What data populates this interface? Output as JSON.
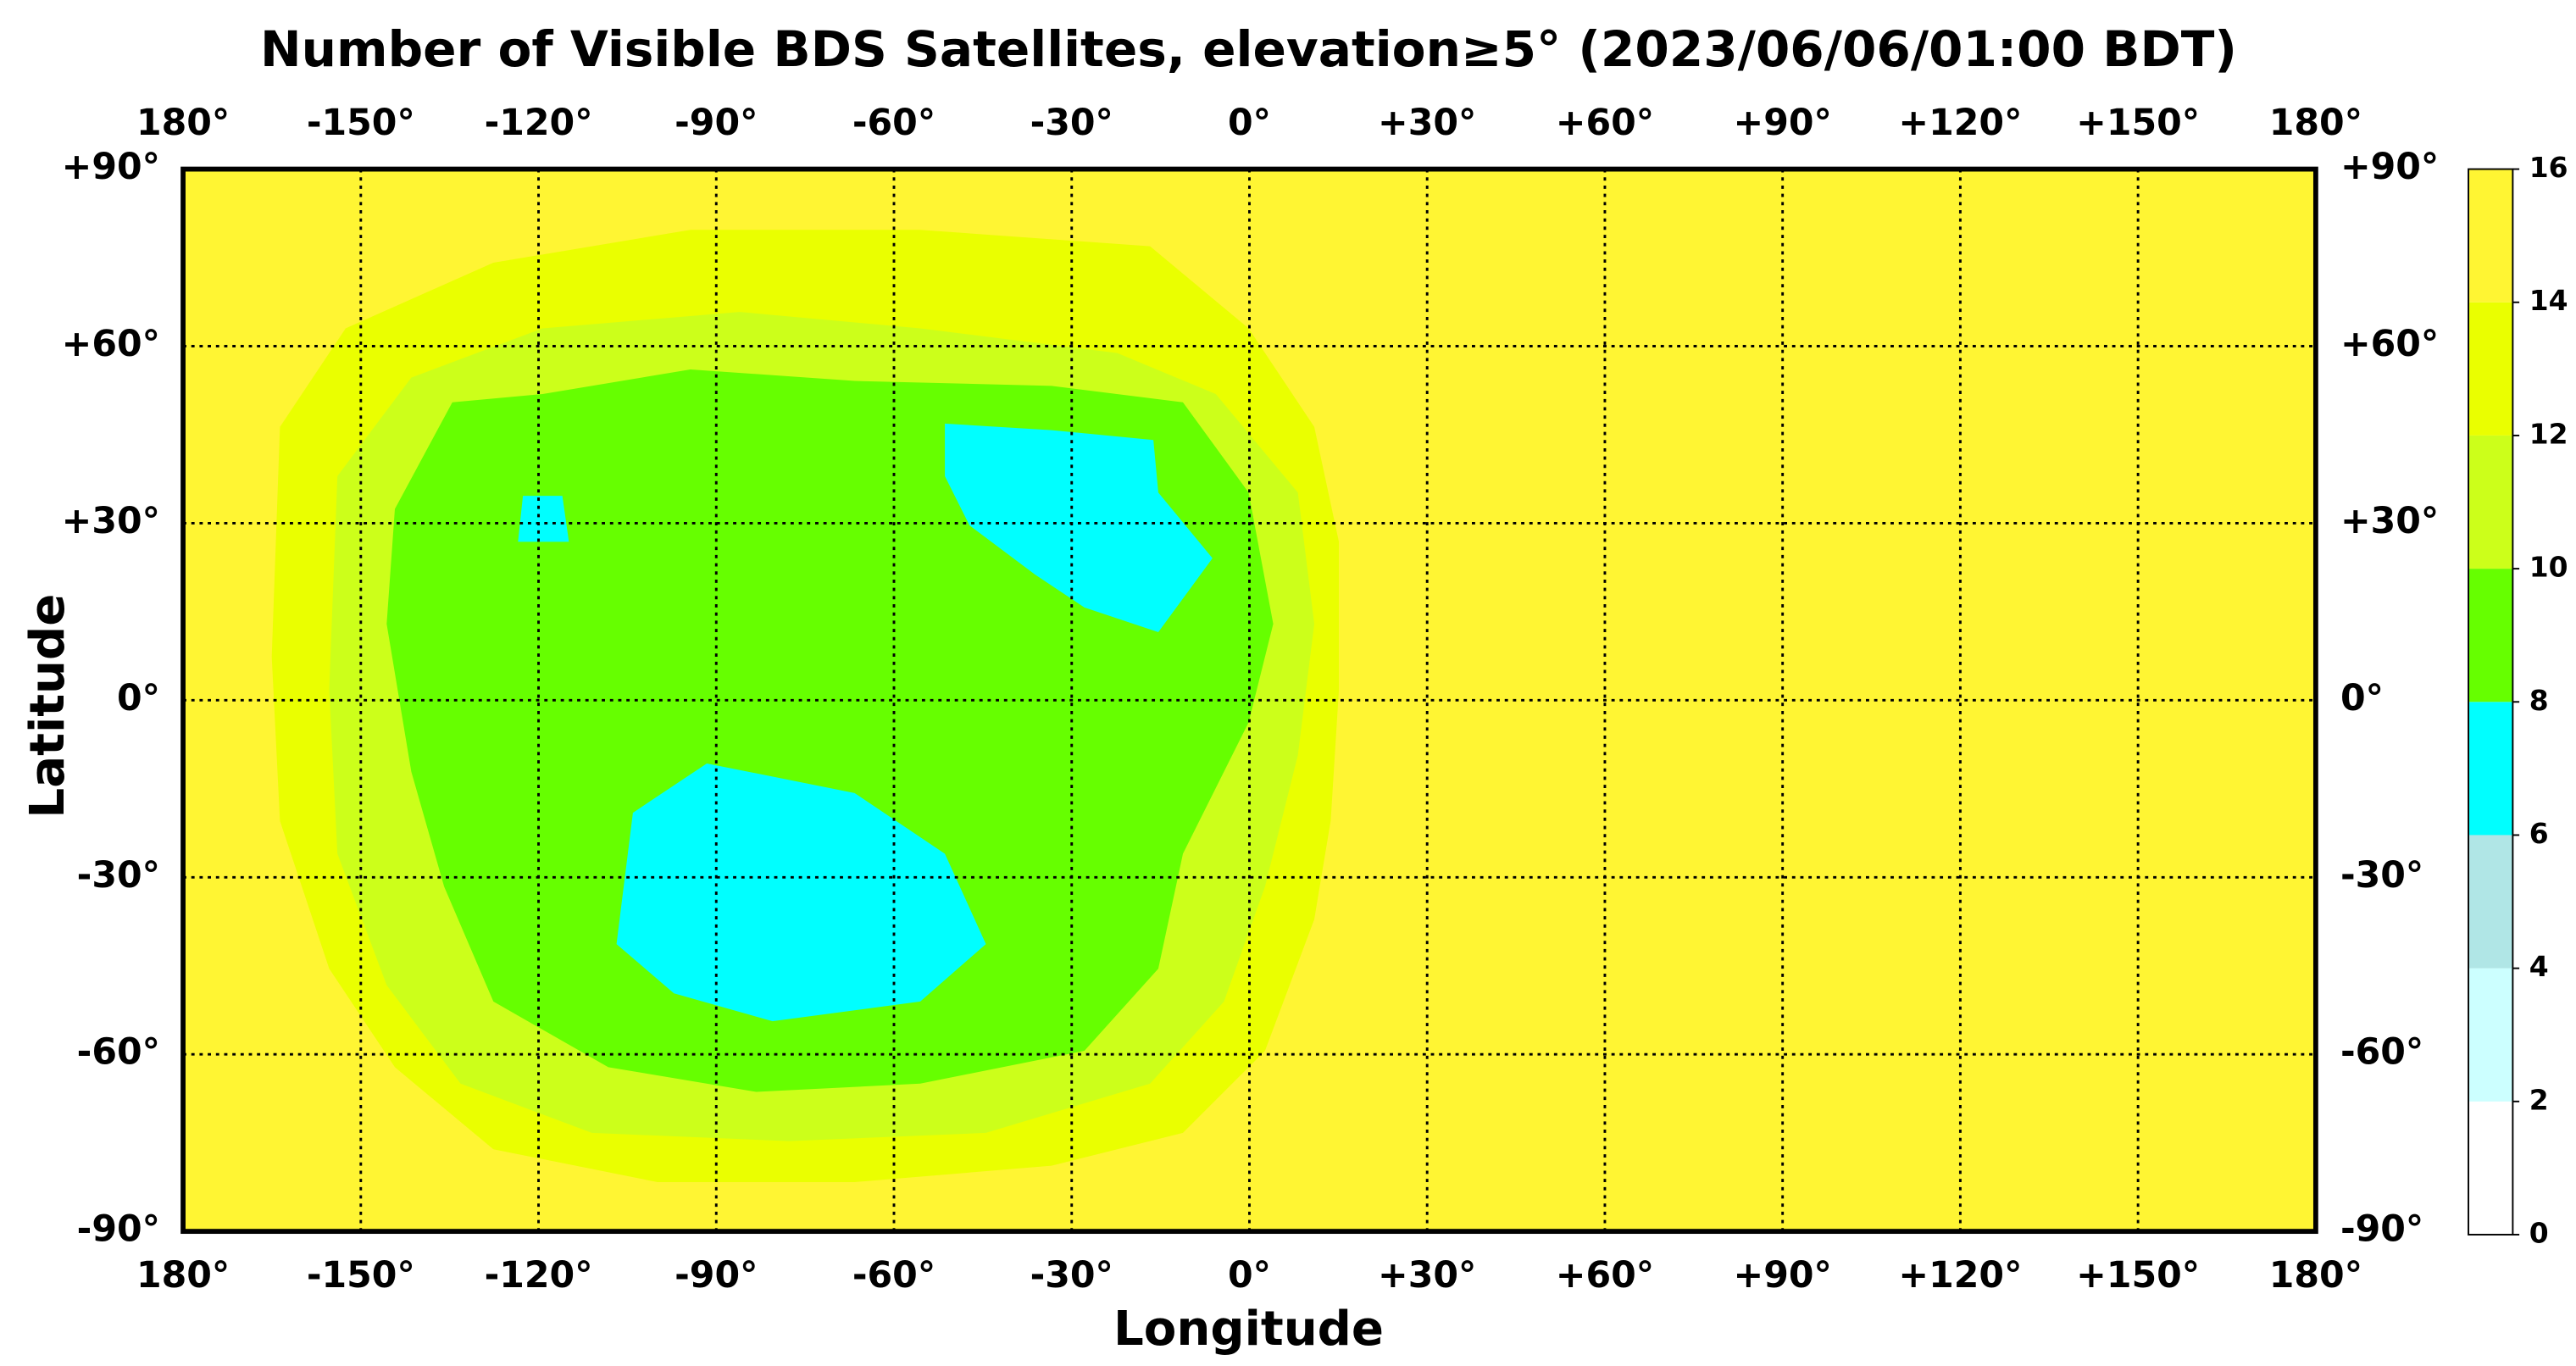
{
  "chart_data": {
    "type": "map",
    "title": "Number of Visible BDS Satellites, elevation≥5° (2023/06/06/01:00 BDT)",
    "x_label": "Longitude",
    "y_label": "Latitude",
    "xlim": [
      -180,
      180
    ],
    "xticks": [
      {
        "value": -180,
        "label": "180°"
      },
      {
        "value": -150,
        "label": "-150°"
      },
      {
        "value": -120,
        "label": "-120°"
      },
      {
        "value": -90,
        "label": "-90°"
      },
      {
        "value": -60,
        "label": "-60°"
      },
      {
        "value": -30,
        "label": "-30°"
      },
      {
        "value": 0,
        "label": "0°"
      },
      {
        "value": 30,
        "label": "+30°"
      },
      {
        "value": 60,
        "label": "+60°"
      },
      {
        "value": 90,
        "label": "+90°"
      },
      {
        "value": 120,
        "label": "+120°"
      },
      {
        "value": 150,
        "label": "+150°"
      },
      {
        "value": 180,
        "label": "180°"
      }
    ],
    "ylim": [
      -90,
      90
    ],
    "yticks": [
      {
        "value": -90,
        "label": "-90°"
      },
      {
        "value": -60,
        "label": "-60°"
      },
      {
        "value": -30,
        "label": "-30°"
      },
      {
        "value": 0,
        "label": "0°"
      },
      {
        "value": 30,
        "label": "+30°"
      },
      {
        "value": 60,
        "label": "+60°"
      },
      {
        "value": 90,
        "label": "+90°"
      }
    ],
    "grid": true,
    "colorbar": {
      "lim": [
        0,
        16
      ],
      "ticks": [
        0,
        2,
        4,
        6,
        8,
        10,
        12,
        14,
        16
      ],
      "colors": [
        "#ffffff",
        "#ccffff",
        "#b0e6e6",
        "#00ffff",
        "#66ff00",
        "#ccff1a",
        "#eaff00",
        "#fff533"
      ]
    }
  }
}
